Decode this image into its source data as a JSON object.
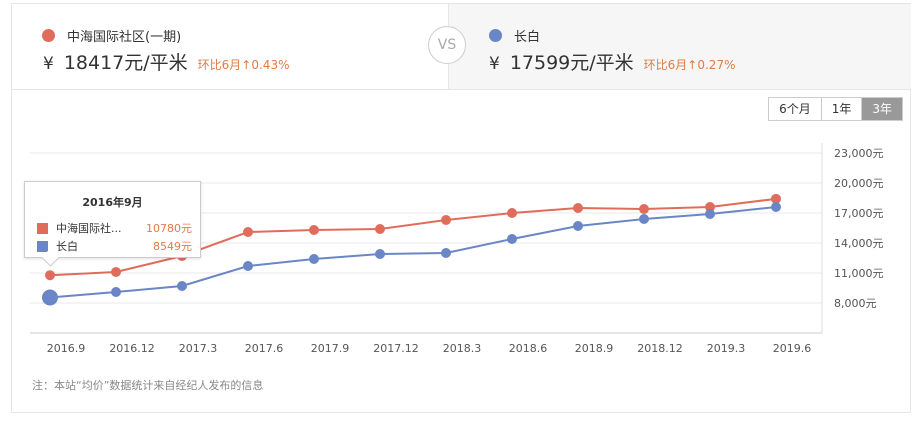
{
  "compare": {
    "left": {
      "name": "中海国际社区(一期)",
      "color": "#e06c5c",
      "currency": "¥",
      "price": "18417元/平米",
      "mom": "环比6月↑0.43%"
    },
    "vs_label": "VS",
    "right": {
      "name": "长白",
      "color": "#6a86c6",
      "currency": "¥",
      "price": "17599元/平米",
      "mom": "环比6月↑0.27%"
    }
  },
  "range_tabs": [
    {
      "label": "6个月",
      "active": false
    },
    {
      "label": "1年",
      "active": false
    },
    {
      "label": "3年",
      "active": true
    }
  ],
  "tooltip": {
    "title": "2016年9月",
    "rows": [
      {
        "label": "中海国际社...",
        "value": "10780元",
        "color": "#e06c5c"
      },
      {
        "label": "长白",
        "value": "8549元",
        "color": "#6a86c6"
      }
    ]
  },
  "note": "注：本站“均价”数据统计来自经纪人发布的信息",
  "chart_data": {
    "type": "line",
    "title": "",
    "xlabel": "",
    "ylabel": "",
    "categories": [
      "2016.9",
      "2016.12",
      "2017.3",
      "2017.6",
      "2017.9",
      "2017.12",
      "2018.3",
      "2018.6",
      "2018.9",
      "2018.12",
      "2019.3",
      "2019.6"
    ],
    "series": [
      {
        "name": "中海国际社区(一期)",
        "color": "#e06c5c",
        "values": [
          10780,
          11100,
          12700,
          15100,
          15300,
          15400,
          16300,
          17000,
          17500,
          17400,
          17600,
          18417
        ]
      },
      {
        "name": "长白",
        "color": "#6a86c6",
        "values": [
          8549,
          9100,
          9700,
          11700,
          12400,
          12900,
          13000,
          14400,
          15700,
          16400,
          16900,
          17599
        ]
      }
    ],
    "ylim": [
      5000,
      23000
    ],
    "yticks": [
      8000,
      11000,
      14000,
      17000,
      20000,
      23000
    ],
    "ytick_labels": [
      "8,000元",
      "11,000元",
      "14,000元",
      "17,000元",
      "20,000元",
      "23,000元"
    ],
    "y_axis_position": "right",
    "grid": true,
    "highlighted_index": 0
  }
}
